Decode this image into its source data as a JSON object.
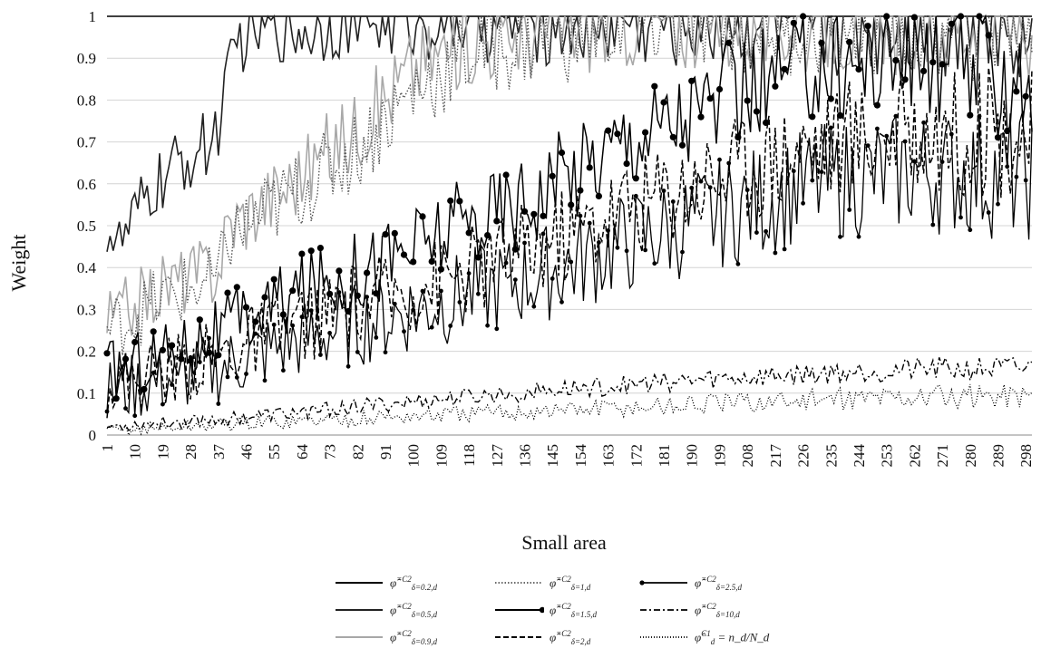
{
  "chart_data": {
    "type": "line",
    "xlabel": "Small area",
    "ylabel": "Weight",
    "ylim": [
      0,
      1
    ],
    "yticks": [
      "0",
      "0.1",
      "0.2",
      "0.3",
      "0.4",
      "0.5",
      "0.6",
      "0.7",
      "0.8",
      "0.9",
      "1"
    ],
    "xticks": [
      "1",
      "10",
      "19",
      "28",
      "37",
      "46",
      "55",
      "64",
      "73",
      "82",
      "91",
      "100",
      "109",
      "118",
      "127",
      "136",
      "145",
      "154",
      "163",
      "172",
      "181",
      "190",
      "199",
      "208",
      "217",
      "226",
      "235",
      "244",
      "253",
      "262",
      "271",
      "280",
      "289",
      "298"
    ],
    "x_range": [
      1,
      300
    ],
    "grid": "horizontal",
    "legend_position": "bottom",
    "series": [
      {
        "name": "φ̂ δ=0.2,d =C2",
        "color": "#000000",
        "style": "solid",
        "keypoints_x": [
          1,
          300
        ],
        "keypoints_y": [
          1.0,
          1.0
        ]
      },
      {
        "name": "φ̂ δ=0.5,d =C2",
        "color": "#222222",
        "style": "solid",
        "keypoints_x": [
          1,
          5,
          15,
          25,
          35,
          40,
          44,
          50,
          55,
          64,
          75,
          300
        ],
        "keypoints_y": [
          0.5,
          0.45,
          0.58,
          0.65,
          0.7,
          0.83,
          0.95,
          0.98,
          0.99,
          0.97,
          1.0,
          1.0
        ]
      },
      {
        "name": "φ̂ δ=0.9,d =C2",
        "color": "#a8a8a8",
        "style": "solid",
        "keypoints_x": [
          1,
          20,
          37,
          40,
          60,
          80,
          100,
          120,
          150,
          170,
          300
        ],
        "keypoints_y": [
          0.27,
          0.36,
          0.4,
          0.5,
          0.6,
          0.72,
          0.88,
          0.95,
          0.98,
          1.0,
          1.0
        ]
      },
      {
        "name": "φ̂ δ=1,d =C2",
        "color": "#555555",
        "style": "dotted",
        "keypoints_x": [
          1,
          20,
          37,
          40,
          60,
          80,
          100,
          120,
          150,
          170,
          300
        ],
        "keypoints_y": [
          0.25,
          0.33,
          0.37,
          0.47,
          0.57,
          0.67,
          0.82,
          0.92,
          0.96,
          0.99,
          1.0
        ]
      },
      {
        "name": "φ̂ δ=1.5,d =C2",
        "color": "#000000",
        "style": "solid-marker",
        "keypoints_x": [
          1,
          37,
          60,
          100,
          140,
          170,
          200,
          230,
          260,
          300
        ],
        "keypoints_y": [
          0.15,
          0.24,
          0.33,
          0.45,
          0.58,
          0.72,
          0.8,
          0.88,
          0.9,
          0.85
        ]
      },
      {
        "name": "φ̂ δ=2,d =C2",
        "color": "#000000",
        "style": "dashed",
        "keypoints_x": [
          1,
          37,
          60,
          100,
          140,
          170,
          200,
          230,
          260,
          300
        ],
        "keypoints_y": [
          0.12,
          0.19,
          0.26,
          0.35,
          0.45,
          0.55,
          0.63,
          0.7,
          0.73,
          0.72
        ]
      },
      {
        "name": "φ̂ δ=2.5,d =C2",
        "color": "#000000",
        "style": "solid-marker-small",
        "keypoints_x": [
          1,
          37,
          60,
          100,
          140,
          170,
          200,
          230,
          260,
          300
        ],
        "keypoints_y": [
          0.1,
          0.16,
          0.22,
          0.3,
          0.38,
          0.46,
          0.53,
          0.6,
          0.63,
          0.62
        ]
      },
      {
        "name": "φ̂ δ=10,d =C2",
        "color": "#000000",
        "style": "dashdot",
        "keypoints_x": [
          1,
          50,
          100,
          150,
          200,
          250,
          300
        ],
        "keypoints_y": [
          0.02,
          0.045,
          0.08,
          0.11,
          0.135,
          0.155,
          0.16
        ]
      },
      {
        "name": "φ̂ d C1 = n_d/N_d",
        "color": "#000000",
        "style": "dotted-fine",
        "keypoints_x": [
          1,
          50,
          100,
          150,
          200,
          250,
          300
        ],
        "keypoints_y": [
          0.01,
          0.03,
          0.045,
          0.06,
          0.075,
          0.09,
          0.095
        ]
      }
    ]
  },
  "legend": [
    {
      "main": "φ̂",
      "sup": "=C2",
      "sub": "δ=0.2,d",
      "style": "solid",
      "color": "#000000"
    },
    {
      "main": "φ̂",
      "sup": "=C2",
      "sub": "δ=1,d",
      "style": "dotted",
      "color": "#555555"
    },
    {
      "main": "φ̂",
      "sup": "=C2",
      "sub": "δ=2.5,d",
      "style": "solid-marker-small",
      "color": "#000000"
    },
    {
      "main": "φ̂",
      "sup": "=C2",
      "sub": "δ=0.5,d",
      "style": "solid",
      "color": "#222222"
    },
    {
      "main": "φ̂",
      "sup": "=C2",
      "sub": "δ=1.5,d",
      "style": "solid-marker",
      "color": "#000000"
    },
    {
      "main": "φ̂",
      "sup": "=C2",
      "sub": "δ=10,d",
      "style": "dashdot",
      "color": "#000000"
    },
    {
      "main": "φ̂",
      "sup": "=C2",
      "sub": "δ=0.9,d",
      "style": "solid",
      "color": "#a8a8a8"
    },
    {
      "main": "φ̂",
      "sup": "=C2",
      "sub": "δ=2,d",
      "style": "dashed",
      "color": "#000000"
    },
    {
      "main": "φ̂",
      "sup": "C1",
      "sub": "d",
      "tail": " = n_d/N_d",
      "style": "dotted-fine",
      "color": "#000000"
    }
  ]
}
